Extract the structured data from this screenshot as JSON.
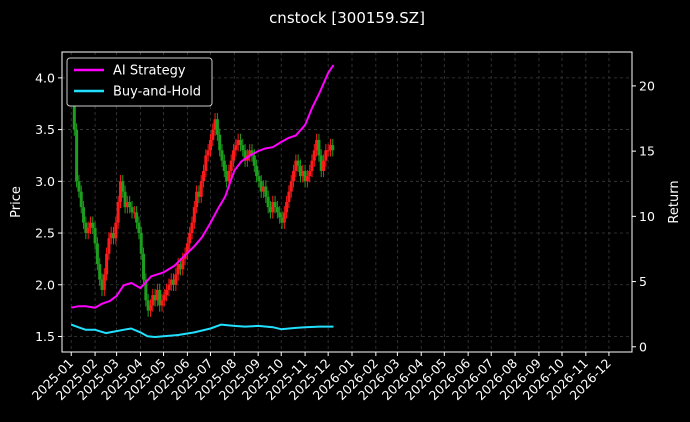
{
  "chart_data": {
    "type": "line",
    "title": "cnstock [300159.SZ]",
    "ylabel_left": "Price",
    "ylabel_right": "Return",
    "y_left_ticks": [
      1.5,
      2.0,
      2.5,
      3.0,
      3.5,
      4.0
    ],
    "y_right_ticks": [
      0,
      5,
      10,
      15,
      20
    ],
    "ylim_left": [
      1.35,
      4.25
    ],
    "ylim_right": [
      -0.4,
      22.6
    ],
    "xlim": [
      "2024-12-20",
      "2026-12-31"
    ],
    "x_ticks": [
      "2025-01",
      "2025-02",
      "2025-03",
      "2025-04",
      "2025-05",
      "2025-06",
      "2025-07",
      "2025-08",
      "2025-09",
      "2025-10",
      "2025-11",
      "2025-12",
      "2026-01",
      "2026-02",
      "2026-03",
      "2026-04",
      "2026-05",
      "2026-06",
      "2026-07",
      "2026-08",
      "2026-09",
      "2026-10",
      "2026-11",
      "2026-12"
    ],
    "grid": true,
    "legend_position": "top-left",
    "colors": {
      "up": "#ff1a1a",
      "down": "#1e9e1e",
      "ai": "#ff00ff",
      "bh": "#22e0ff",
      "grid": "#3c3c3c",
      "axes": "#ffffff"
    },
    "series": [
      {
        "name": "AI Strategy",
        "axis": "right",
        "x": [
          "2025-01-01",
          "2025-01-10",
          "2025-01-20",
          "2025-02-01",
          "2025-02-10",
          "2025-02-20",
          "2025-03-01",
          "2025-03-10",
          "2025-03-20",
          "2025-04-01",
          "2025-04-15",
          "2025-05-01",
          "2025-05-15",
          "2025-06-01",
          "2025-06-10",
          "2025-06-20",
          "2025-07-01",
          "2025-07-10",
          "2025-07-20",
          "2025-08-01",
          "2025-08-10",
          "2025-08-20",
          "2025-09-01",
          "2025-09-10",
          "2025-09-20",
          "2025-10-01",
          "2025-10-10",
          "2025-10-20",
          "2025-11-01",
          "2025-11-10",
          "2025-11-20",
          "2025-12-01",
          "2025-12-08"
        ],
        "values": [
          3.0,
          3.1,
          3.1,
          3.0,
          3.3,
          3.5,
          3.9,
          4.7,
          4.9,
          4.5,
          5.4,
          5.7,
          6.2,
          7.2,
          7.7,
          8.4,
          9.5,
          10.5,
          11.5,
          13.5,
          14.2,
          14.6,
          15.0,
          15.2,
          15.3,
          15.7,
          16.0,
          16.2,
          17.0,
          18.3,
          19.5,
          21.0,
          21.6
        ]
      },
      {
        "name": "Buy-and-Hold",
        "axis": "right",
        "x": [
          "2025-01-01",
          "2025-01-10",
          "2025-01-20",
          "2025-02-01",
          "2025-02-15",
          "2025-03-01",
          "2025-03-10",
          "2025-03-20",
          "2025-04-01",
          "2025-04-10",
          "2025-04-20",
          "2025-05-01",
          "2025-05-20",
          "2025-06-10",
          "2025-07-01",
          "2025-07-15",
          "2025-08-01",
          "2025-08-15",
          "2025-09-01",
          "2025-09-20",
          "2025-10-01",
          "2025-10-20",
          "2025-11-01",
          "2025-11-20",
          "2025-12-08"
        ],
        "values": [
          1.7,
          1.5,
          1.3,
          1.3,
          1.05,
          1.2,
          1.3,
          1.4,
          1.1,
          0.8,
          0.75,
          0.8,
          0.9,
          1.1,
          1.4,
          1.7,
          1.6,
          1.55,
          1.6,
          1.5,
          1.35,
          1.45,
          1.5,
          1.55,
          1.55
        ]
      }
    ],
    "candles": {
      "axis": "left",
      "x": [
        "2025-01-02",
        "2025-01-05",
        "2025-01-08",
        "2025-01-11",
        "2025-01-14",
        "2025-01-17",
        "2025-01-20",
        "2025-01-23",
        "2025-01-26",
        "2025-01-29",
        "2025-02-01",
        "2025-02-04",
        "2025-02-07",
        "2025-02-10",
        "2025-02-13",
        "2025-02-16",
        "2025-02-19",
        "2025-02-22",
        "2025-02-25",
        "2025-02-28",
        "2025-03-03",
        "2025-03-06",
        "2025-03-09",
        "2025-03-12",
        "2025-03-15",
        "2025-03-18",
        "2025-03-21",
        "2025-03-24",
        "2025-03-27",
        "2025-03-30",
        "2025-04-02",
        "2025-04-05",
        "2025-04-08",
        "2025-04-11",
        "2025-04-14",
        "2025-04-17",
        "2025-04-20",
        "2025-04-23",
        "2025-04-26",
        "2025-04-29",
        "2025-05-02",
        "2025-05-05",
        "2025-05-08",
        "2025-05-11",
        "2025-05-14",
        "2025-05-17",
        "2025-05-20",
        "2025-05-23",
        "2025-05-26",
        "2025-05-29",
        "2025-06-01",
        "2025-06-04",
        "2025-06-07",
        "2025-06-10",
        "2025-06-13",
        "2025-06-16",
        "2025-06-19",
        "2025-06-22",
        "2025-06-25",
        "2025-06-28",
        "2025-07-01",
        "2025-07-04",
        "2025-07-07",
        "2025-07-10",
        "2025-07-13",
        "2025-07-16",
        "2025-07-19",
        "2025-07-22",
        "2025-07-25",
        "2025-07-28",
        "2025-07-31",
        "2025-08-03",
        "2025-08-06",
        "2025-08-09",
        "2025-08-12",
        "2025-08-15",
        "2025-08-18",
        "2025-08-21",
        "2025-08-24",
        "2025-08-27",
        "2025-08-30",
        "2025-09-02",
        "2025-09-05",
        "2025-09-08",
        "2025-09-11",
        "2025-09-14",
        "2025-09-17",
        "2025-09-20",
        "2025-09-23",
        "2025-09-26",
        "2025-09-29",
        "2025-10-02",
        "2025-10-05",
        "2025-10-08",
        "2025-10-11",
        "2025-10-14",
        "2025-10-17",
        "2025-10-20",
        "2025-10-23",
        "2025-10-26",
        "2025-10-29",
        "2025-11-01",
        "2025-11-04",
        "2025-11-07",
        "2025-11-10",
        "2025-11-13",
        "2025-11-16",
        "2025-11-19",
        "2025-11-22",
        "2025-11-25",
        "2025-11-28",
        "2025-12-01",
        "2025-12-04",
        "2025-12-07"
      ],
      "close": [
        3.9,
        3.5,
        3.0,
        2.9,
        2.75,
        2.6,
        2.5,
        2.55,
        2.6,
        2.55,
        2.4,
        2.2,
        2.05,
        1.95,
        2.1,
        2.3,
        2.45,
        2.5,
        2.45,
        2.6,
        2.8,
        3.0,
        2.9,
        2.75,
        2.8,
        2.75,
        2.7,
        2.7,
        2.6,
        2.5,
        2.3,
        2.05,
        1.85,
        1.75,
        1.8,
        1.9,
        1.85,
        1.95,
        1.8,
        1.85,
        1.9,
        1.95,
        2.0,
        2.05,
        2.0,
        2.1,
        2.2,
        2.15,
        2.25,
        2.3,
        2.4,
        2.5,
        2.6,
        2.75,
        2.9,
        2.85,
        3.0,
        3.1,
        3.25,
        3.3,
        3.4,
        3.5,
        3.6,
        3.45,
        3.3,
        3.2,
        3.1,
        3.0,
        3.1,
        3.2,
        3.3,
        3.35,
        3.4,
        3.35,
        3.3,
        3.2,
        3.25,
        3.3,
        3.25,
        3.15,
        3.05,
        3.0,
        2.9,
        2.95,
        2.85,
        2.75,
        2.7,
        2.8,
        2.75,
        2.7,
        2.65,
        2.6,
        2.7,
        2.8,
        2.9,
        3.0,
        3.1,
        3.2,
        3.15,
        3.05,
        3.1,
        3.0,
        3.05,
        3.1,
        3.2,
        3.3,
        3.4,
        3.25,
        3.1,
        3.2,
        3.3,
        3.3,
        3.35,
        3.3
      ]
    }
  }
}
